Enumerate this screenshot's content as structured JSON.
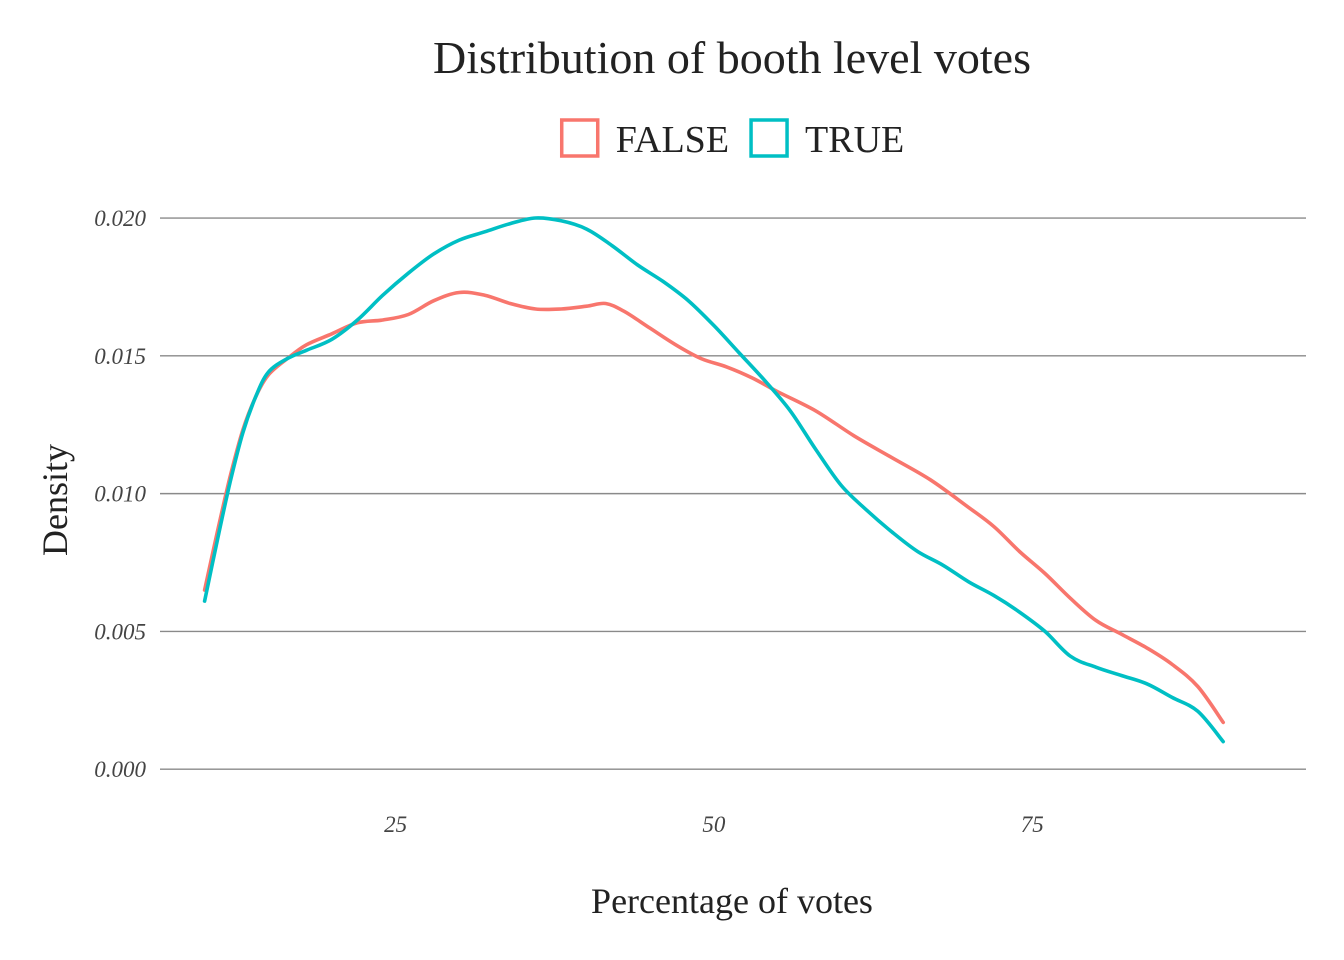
{
  "chart_data": {
    "type": "line",
    "title": "Distribution of booth level votes",
    "xlabel": "Percentage of votes",
    "ylabel": "Density",
    "xlim": [
      6.5,
      96.5
    ],
    "ylim": [
      -0.0009,
      0.0208
    ],
    "x_ticks": [
      {
        "value": 25,
        "label": "25"
      },
      {
        "value": 50,
        "label": "50"
      },
      {
        "value": 75,
        "label": "75"
      }
    ],
    "y_ticks": [
      {
        "value": 0.0,
        "label": "0.000"
      },
      {
        "value": 0.005,
        "label": "0.005"
      },
      {
        "value": 0.01,
        "label": "0.010"
      },
      {
        "value": 0.015,
        "label": "0.015"
      },
      {
        "value": 0.02,
        "label": "0.020"
      }
    ],
    "grid": "horizontal major",
    "legend_position": "top",
    "series": [
      {
        "name": "FALSE",
        "color": "#F8766D",
        "points": [
          [
            10.0,
            0.0065
          ],
          [
            11.0,
            0.0086
          ],
          [
            12.0,
            0.0106
          ],
          [
            13.0,
            0.0123
          ],
          [
            14.0,
            0.0135
          ],
          [
            15.0,
            0.0143
          ],
          [
            16.5,
            0.0149
          ],
          [
            18.0,
            0.0154
          ],
          [
            20.0,
            0.0158
          ],
          [
            22.0,
            0.0162
          ],
          [
            24.0,
            0.0163
          ],
          [
            26.0,
            0.0165
          ],
          [
            28.0,
            0.017
          ],
          [
            30.0,
            0.0173
          ],
          [
            32.0,
            0.0172
          ],
          [
            34.0,
            0.0169
          ],
          [
            36.0,
            0.0167
          ],
          [
            38.0,
            0.0167
          ],
          [
            40.0,
            0.0168
          ],
          [
            41.5,
            0.0169
          ],
          [
            43.0,
            0.0166
          ],
          [
            45.0,
            0.016
          ],
          [
            47.0,
            0.0154
          ],
          [
            49.0,
            0.0149
          ],
          [
            51.0,
            0.0146
          ],
          [
            53.0,
            0.0142
          ],
          [
            55.0,
            0.0137
          ],
          [
            58.0,
            0.013
          ],
          [
            61.0,
            0.0121
          ],
          [
            64.0,
            0.0113
          ],
          [
            67.0,
            0.0105
          ],
          [
            70.0,
            0.0095
          ],
          [
            72.0,
            0.0088
          ],
          [
            74.0,
            0.0079
          ],
          [
            76.0,
            0.0071
          ],
          [
            78.0,
            0.0062
          ],
          [
            80.0,
            0.0054
          ],
          [
            82.0,
            0.0049
          ],
          [
            84.0,
            0.0044
          ],
          [
            86.0,
            0.0038
          ],
          [
            88.0,
            0.003
          ],
          [
            90.0,
            0.0017
          ]
        ]
      },
      {
        "name": "TRUE",
        "color": "#00BFC4",
        "points": [
          [
            10.0,
            0.0061
          ],
          [
            11.0,
            0.0083
          ],
          [
            12.0,
            0.0104
          ],
          [
            13.0,
            0.0122
          ],
          [
            14.0,
            0.0135
          ],
          [
            15.0,
            0.0144
          ],
          [
            16.5,
            0.0149
          ],
          [
            18.0,
            0.0152
          ],
          [
            20.0,
            0.0156
          ],
          [
            22.0,
            0.0163
          ],
          [
            24.0,
            0.0172
          ],
          [
            26.0,
            0.018
          ],
          [
            28.0,
            0.0187
          ],
          [
            30.0,
            0.0192
          ],
          [
            32.0,
            0.0195
          ],
          [
            34.0,
            0.0198
          ],
          [
            36.0,
            0.02
          ],
          [
            38.0,
            0.0199
          ],
          [
            40.0,
            0.0196
          ],
          [
            42.0,
            0.019
          ],
          [
            44.0,
            0.0183
          ],
          [
            46.0,
            0.0177
          ],
          [
            48.0,
            0.017
          ],
          [
            50.0,
            0.0161
          ],
          [
            52.0,
            0.0151
          ],
          [
            54.0,
            0.0141
          ],
          [
            56.0,
            0.013
          ],
          [
            58.0,
            0.0116
          ],
          [
            60.0,
            0.0103
          ],
          [
            62.0,
            0.0094
          ],
          [
            64.0,
            0.0086
          ],
          [
            66.0,
            0.0079
          ],
          [
            68.0,
            0.0074
          ],
          [
            70.0,
            0.0068
          ],
          [
            72.0,
            0.0063
          ],
          [
            74.0,
            0.0057
          ],
          [
            76.0,
            0.005
          ],
          [
            78.0,
            0.0041
          ],
          [
            80.0,
            0.0037
          ],
          [
            82.0,
            0.0034
          ],
          [
            84.0,
            0.0031
          ],
          [
            86.0,
            0.0026
          ],
          [
            88.0,
            0.0021
          ],
          [
            90.0,
            0.001
          ]
        ]
      }
    ]
  }
}
